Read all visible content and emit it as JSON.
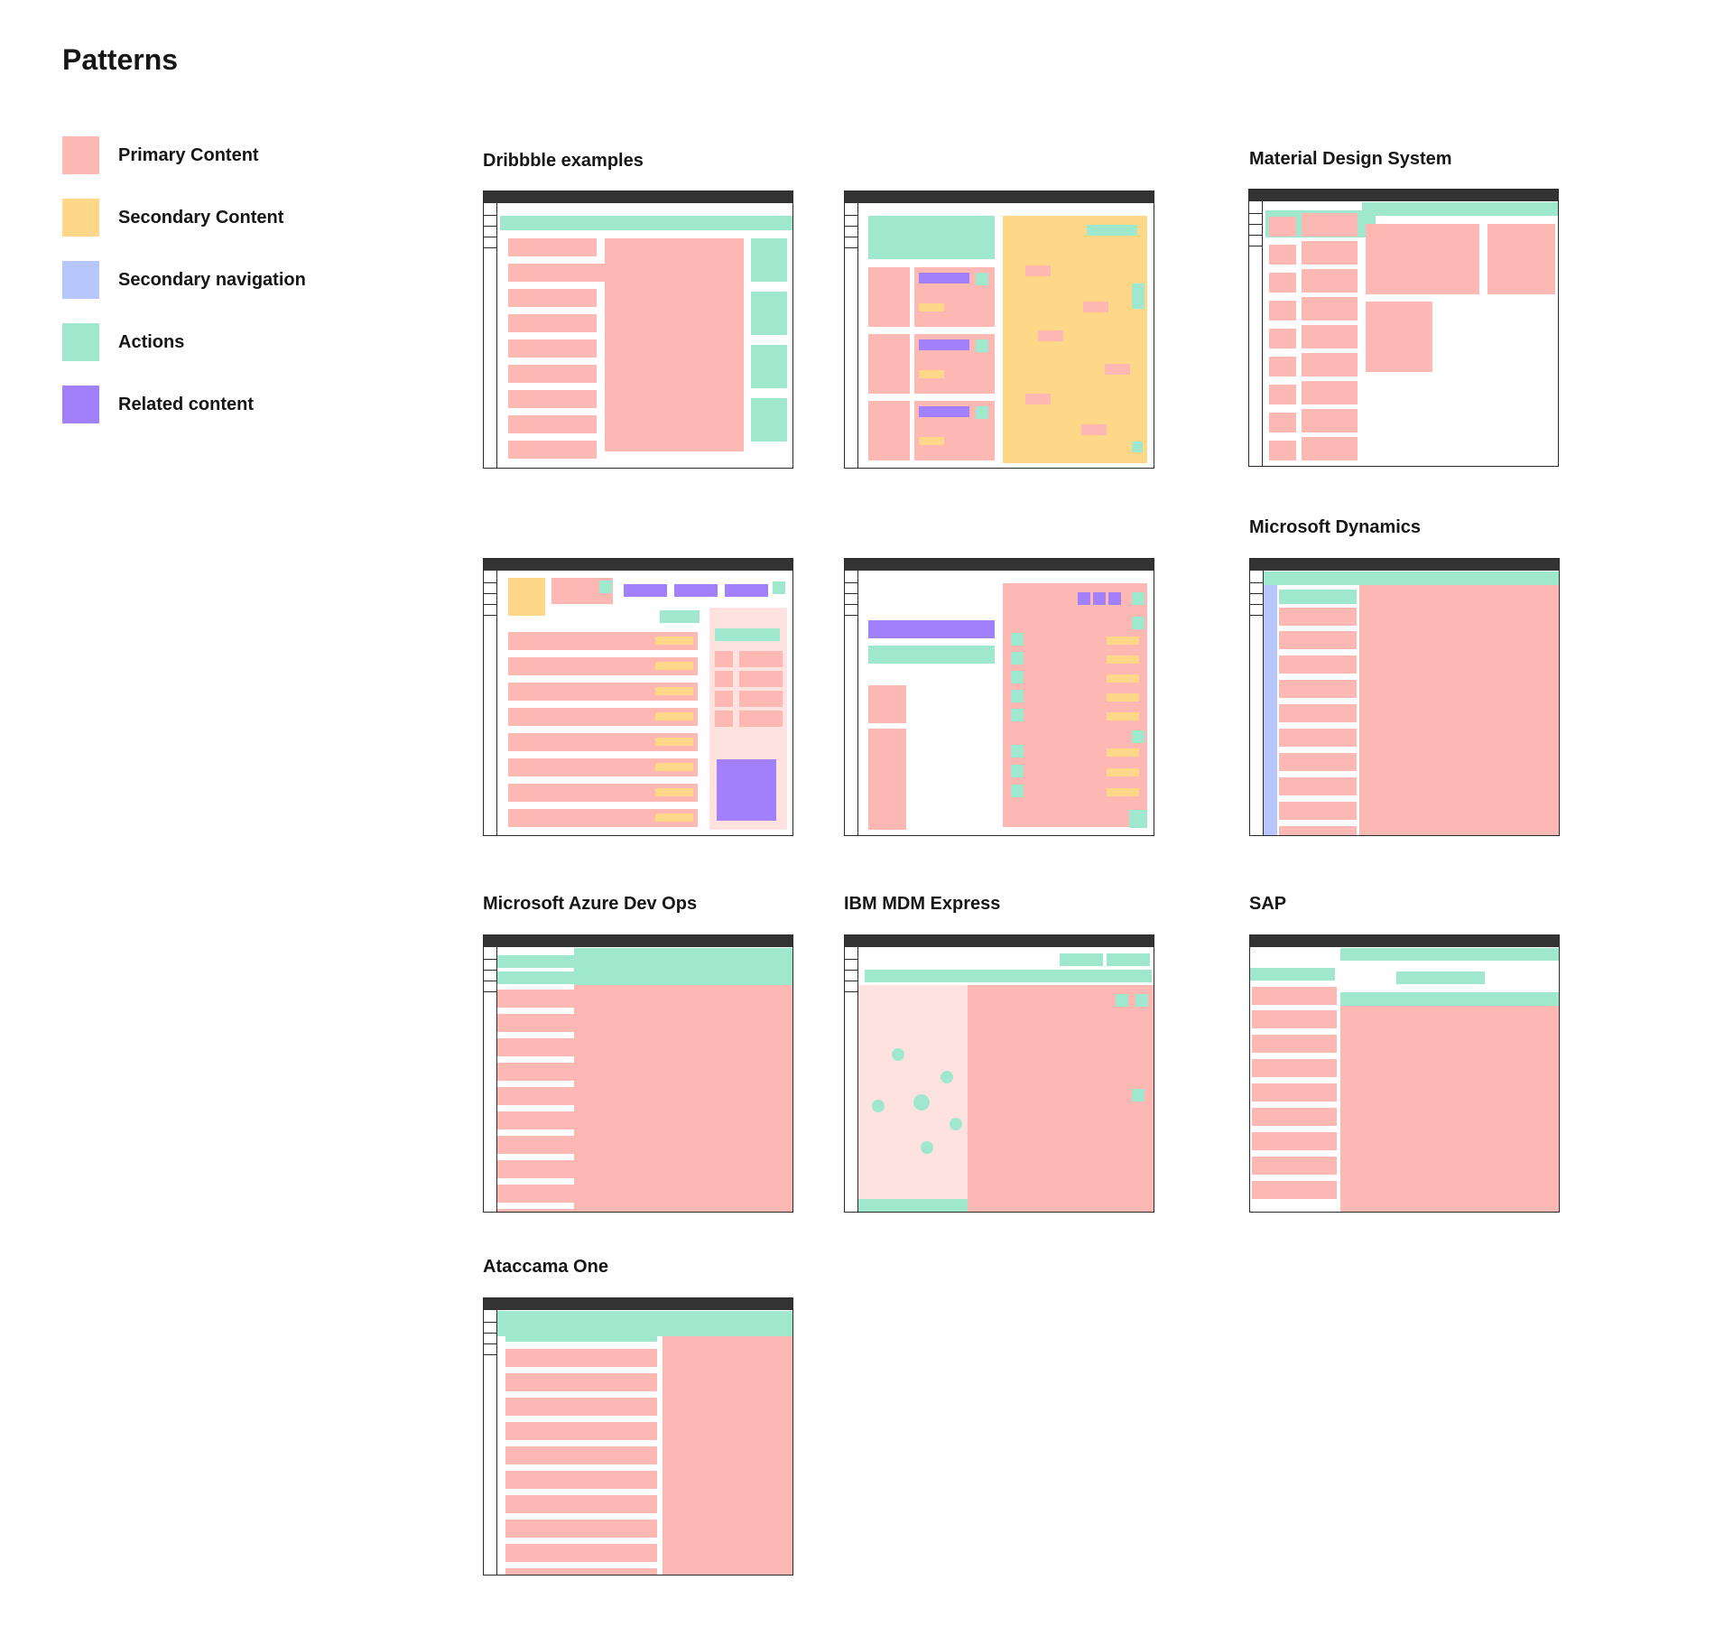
{
  "page": {
    "title": "Patterns"
  },
  "legend": [
    {
      "label": "Primary Content",
      "color": "#fdb8b4"
    },
    {
      "label": "Secondary Content",
      "color": "#fed888"
    },
    {
      "label": "Secondary navigation",
      "color": "#b8c6fe"
    },
    {
      "label": "Actions",
      "color": "#a0e8cd"
    },
    {
      "label": "Related content",
      "color": "#a27ffb"
    }
  ],
  "groups": {
    "dribbble": "Dribbble examples",
    "material": "Material Design System",
    "dynamics": "Microsoft Dynamics",
    "azure": "Microsoft Azure Dev Ops",
    "ibm": "IBM MDM Express",
    "sap": "SAP",
    "ataccama": "Ataccama One"
  }
}
